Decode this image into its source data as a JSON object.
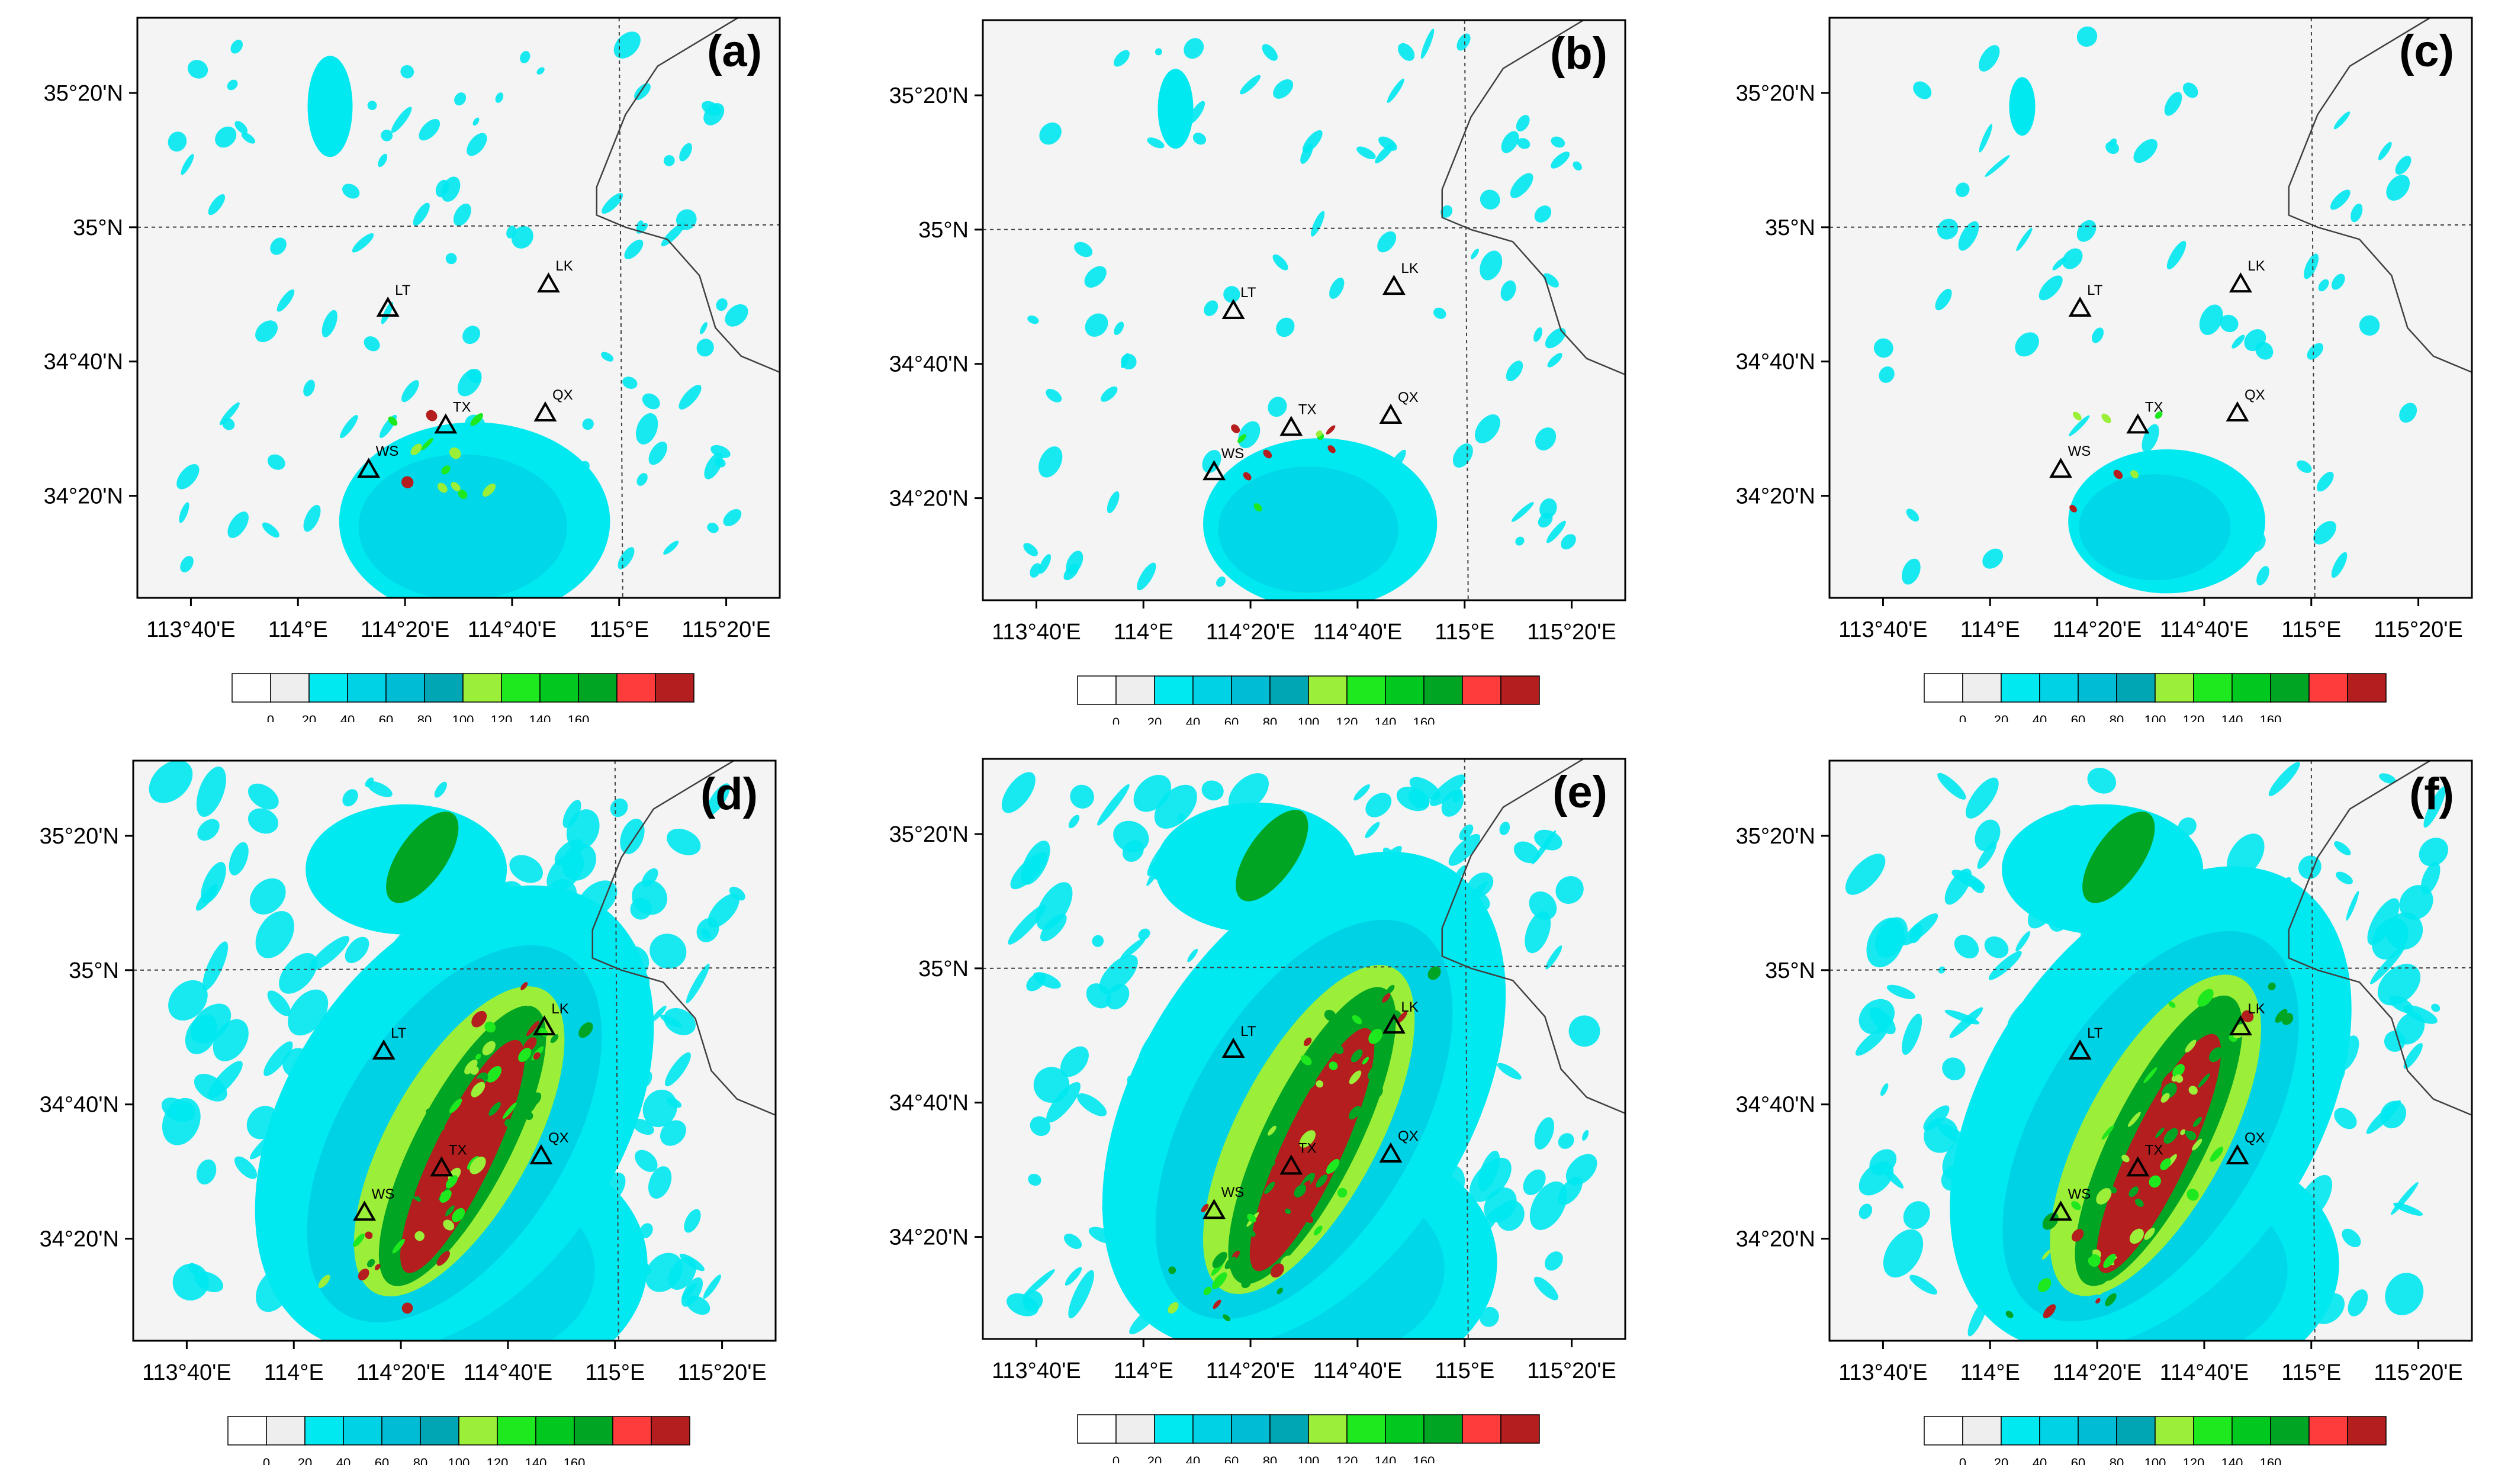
{
  "figure": {
    "colors": {
      "land": "#f4f4f4",
      "frame": "#000000",
      "boundary": "#404040",
      "gridline": "#404040",
      "station": "#000000"
    },
    "colorbar": {
      "tick_labels": [
        "0",
        "20",
        "40",
        "60",
        "80",
        "100",
        "120",
        "140",
        "160"
      ],
      "colors": [
        "#ffffff",
        "#eeeeee",
        "#00e8f0",
        "#00d2e6",
        "#00bcd4",
        "#00a6b4",
        "#9bef38",
        "#1ee81e",
        "#00c81e",
        "#00a523",
        "#ff3c3c",
        "#b41e1e"
      ]
    },
    "panels": [
      {
        "label": "(a)",
        "lat_labels": [
          "35°20'N",
          "35°N",
          "34°40'N",
          "34°20'N"
        ],
        "lon_labels": [
          "113°40'E",
          "114°E",
          "114°20'E",
          "114°40'E",
          "115°E",
          "115°20'E"
        ],
        "stations": [
          {
            "code": "LT",
            "lon": 114.28,
            "lat": 34.8
          },
          {
            "code": "LK",
            "lon": 114.78,
            "lat": 34.86
          },
          {
            "code": "TX",
            "lon": 114.46,
            "lat": 34.51
          },
          {
            "code": "QX",
            "lon": 114.77,
            "lat": 34.54
          },
          {
            "code": "WS",
            "lon": 114.22,
            "lat": 34.4
          }
        ],
        "intensity": 0.55
      },
      {
        "label": "(b)",
        "lat_labels": [
          "35°20'N",
          "35°N",
          "34°40'N",
          "34°20'N"
        ],
        "lon_labels": [
          "113°40'E",
          "114°E",
          "114°20'E",
          "114°40'E",
          "115°E",
          "115°20'E"
        ],
        "stations": [
          {
            "code": "LT",
            "lon": 114.28,
            "lat": 34.8
          },
          {
            "code": "LK",
            "lon": 114.78,
            "lat": 34.86
          },
          {
            "code": "TX",
            "lon": 114.46,
            "lat": 34.51
          },
          {
            "code": "QX",
            "lon": 114.77,
            "lat": 34.54
          },
          {
            "code": "WS",
            "lon": 114.22,
            "lat": 34.4
          }
        ],
        "intensity": 0.35
      },
      {
        "label": "(c)",
        "lat_labels": [
          "35°20'N",
          "35°N",
          "34°40'N",
          "34°20'N"
        ],
        "lon_labels": [
          "113°40'E",
          "114°E",
          "114°20'E",
          "114°40'E",
          "115°E",
          "115°20'E"
        ],
        "stations": [
          {
            "code": "LT",
            "lon": 114.28,
            "lat": 34.8
          },
          {
            "code": "LK",
            "lon": 114.78,
            "lat": 34.86
          },
          {
            "code": "TX",
            "lon": 114.46,
            "lat": 34.51
          },
          {
            "code": "QX",
            "lon": 114.77,
            "lat": 34.54
          },
          {
            "code": "WS",
            "lon": 114.22,
            "lat": 34.4
          }
        ],
        "intensity": 0.15
      },
      {
        "label": "(d)",
        "lat_labels": [
          "35°20'N",
          "35°N",
          "34°40'N",
          "34°20'N"
        ],
        "lon_labels": [
          "113°40'E",
          "114°E",
          "114°20'E",
          "114°40'E",
          "115°E",
          "115°20'E"
        ],
        "stations": [
          {
            "code": "LT",
            "lon": 114.28,
            "lat": 34.8
          },
          {
            "code": "LK",
            "lon": 114.78,
            "lat": 34.86
          },
          {
            "code": "TX",
            "lon": 114.46,
            "lat": 34.51
          },
          {
            "code": "QX",
            "lon": 114.77,
            "lat": 34.54
          },
          {
            "code": "WS",
            "lon": 114.22,
            "lat": 34.4
          }
        ],
        "intensity": 1.0
      },
      {
        "label": "(e)",
        "lat_labels": [
          "35°20'N",
          "35°N",
          "34°40'N",
          "34°20'N"
        ],
        "lon_labels": [
          "113°40'E",
          "114°E",
          "114°20'E",
          "114°40'E",
          "115°E",
          "115°20'E"
        ],
        "stations": [
          {
            "code": "LT",
            "lon": 114.28,
            "lat": 34.8
          },
          {
            "code": "LK",
            "lon": 114.78,
            "lat": 34.86
          },
          {
            "code": "TX",
            "lon": 114.46,
            "lat": 34.51
          },
          {
            "code": "QX",
            "lon": 114.77,
            "lat": 34.54
          },
          {
            "code": "WS",
            "lon": 114.22,
            "lat": 34.4
          }
        ],
        "intensity": 1.0
      },
      {
        "label": "(f)",
        "lat_labels": [
          "35°20'N",
          "35°N",
          "34°40'N",
          "34°20'N"
        ],
        "lon_labels": [
          "113°40'E",
          "114°E",
          "114°20'E",
          "114°40'E",
          "115°E",
          "115°20'E"
        ],
        "stations": [
          {
            "code": "LT",
            "lon": 114.28,
            "lat": 34.8
          },
          {
            "code": "LK",
            "lon": 114.78,
            "lat": 34.86
          },
          {
            "code": "TX",
            "lon": 114.46,
            "lat": 34.51
          },
          {
            "code": "QX",
            "lon": 114.77,
            "lat": 34.54
          },
          {
            "code": "WS",
            "lon": 114.22,
            "lat": 34.4
          }
        ],
        "intensity": 0.95
      }
    ]
  }
}
